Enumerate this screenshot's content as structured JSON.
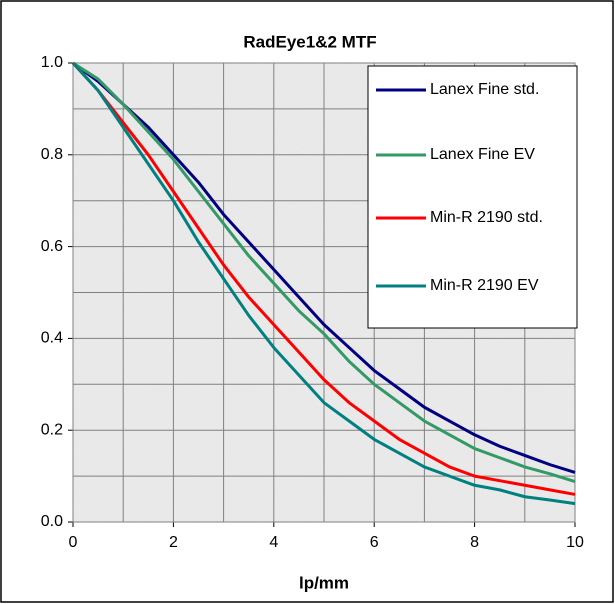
{
  "chart_data": {
    "type": "line",
    "title": "RadEye1&2 MTF",
    "x_label": "lp/mm",
    "x": [
      0,
      0.5,
      1,
      1.5,
      2,
      2.5,
      3,
      3.5,
      4,
      4.5,
      5,
      5.5,
      6,
      6.5,
      7,
      7.5,
      8,
      8.5,
      9,
      9.5,
      10
    ],
    "series": [
      {
        "name": "Lanex Fine std.",
        "color": "#000080",
        "values": [
          1.0,
          0.96,
          0.91,
          0.86,
          0.8,
          0.74,
          0.67,
          0.61,
          0.55,
          0.49,
          0.43,
          0.38,
          0.33,
          0.29,
          0.25,
          0.22,
          0.19,
          0.165,
          0.145,
          0.125,
          0.108
        ]
      },
      {
        "name": "Lanex Fine EV",
        "color": "#339966",
        "values": [
          1.0,
          0.965,
          0.91,
          0.85,
          0.79,
          0.72,
          0.65,
          0.58,
          0.52,
          0.46,
          0.41,
          0.35,
          0.3,
          0.26,
          0.22,
          0.19,
          0.16,
          0.14,
          0.12,
          0.105,
          0.088
        ]
      },
      {
        "name": "Min-R 2190 std.",
        "color": "#ff0000",
        "values": [
          1.0,
          0.94,
          0.87,
          0.8,
          0.72,
          0.64,
          0.56,
          0.49,
          0.43,
          0.37,
          0.31,
          0.26,
          0.22,
          0.18,
          0.15,
          0.12,
          0.1,
          0.09,
          0.08,
          0.07,
          0.06
        ]
      },
      {
        "name": "Min-R 2190 EV",
        "color": "#008080",
        "values": [
          1.0,
          0.94,
          0.86,
          0.78,
          0.7,
          0.61,
          0.53,
          0.45,
          0.38,
          0.32,
          0.26,
          0.22,
          0.18,
          0.15,
          0.12,
          0.1,
          0.08,
          0.07,
          0.055,
          0.048,
          0.04
        ]
      }
    ],
    "xlim": [
      0,
      10
    ],
    "xticks": [
      0,
      2,
      4,
      6,
      8,
      10
    ],
    "xminorticks": [
      1,
      3,
      5,
      7,
      9
    ],
    "ylim": [
      0,
      1
    ],
    "yticks": [
      {
        "value": 0,
        "label": "0.0"
      },
      0.2,
      0.4,
      0.6,
      0.8,
      {
        "value": 1,
        "label": "1.0"
      }
    ],
    "yminorticks": [
      0.1,
      0.3,
      0.5,
      0.7,
      0.9
    ],
    "grid": true,
    "legend": "upper right"
  }
}
